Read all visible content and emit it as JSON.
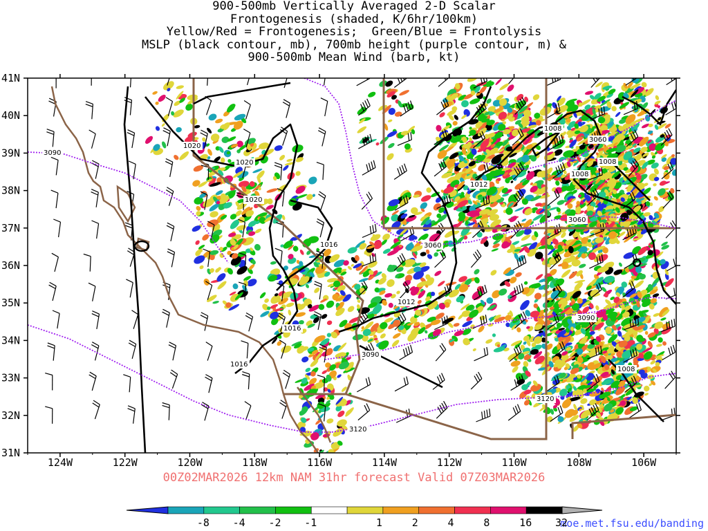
{
  "title_lines": [
    "900-500mb Vertically Averaged 2-D Scalar",
    "Frontogenesis (shaded, K/6hr/100km)",
    "Yellow/Red = Frontogenesis;  Green/Blue = Frontolysis",
    "MSLP (black contour, mb), 700mb height (purple contour, m) &",
    "900-500mb Mean Wind (barb, kt)"
  ],
  "valid_line": "00Z02MAR2026 12km NAM 31hr forecast Valid 07Z03MAR2026",
  "url": "moe.met.fsu.edu/banding",
  "map": {
    "lon_range": [
      -125,
      -105
    ],
    "lat_range": [
      31,
      41
    ],
    "lat_ticks": [
      "31N",
      "32N",
      "33N",
      "34N",
      "35N",
      "36N",
      "37N",
      "38N",
      "39N",
      "40N",
      "41N"
    ],
    "lon_ticks": [
      "124W",
      "122W",
      "120W",
      "118W",
      "116W",
      "114W",
      "112W",
      "110W",
      "108W",
      "106W"
    ]
  },
  "contour_labels": {
    "mslp": [
      "1020",
      "1020",
      "1020",
      "1016",
      "1016",
      "1016",
      "1012",
      "1012",
      "1008",
      "1008",
      "1008",
      "1008"
    ],
    "height_700mb": [
      "3090",
      "3060",
      "3060",
      "3060",
      "3090",
      "3090",
      "3120",
      "3120"
    ]
  },
  "colorbar": {
    "labels": [
      "-8",
      "-4",
      "-2",
      "-1",
      "1",
      "2",
      "4",
      "8",
      "16",
      "32"
    ],
    "colors": [
      "#2030e0",
      "#1aa5b8",
      "#22c88e",
      "#22c04a",
      "#11c011",
      "#ffffff",
      "#e0d63a",
      "#f0a020",
      "#f07030",
      "#f03050",
      "#e0106e",
      "#000000",
      "#b0b0b0"
    ]
  },
  "colors": {
    "mslp": "#000000",
    "height": "#a020f0",
    "coast": "#8b6448",
    "valid_text": "#f07070",
    "url_text": "#3a4cff"
  }
}
